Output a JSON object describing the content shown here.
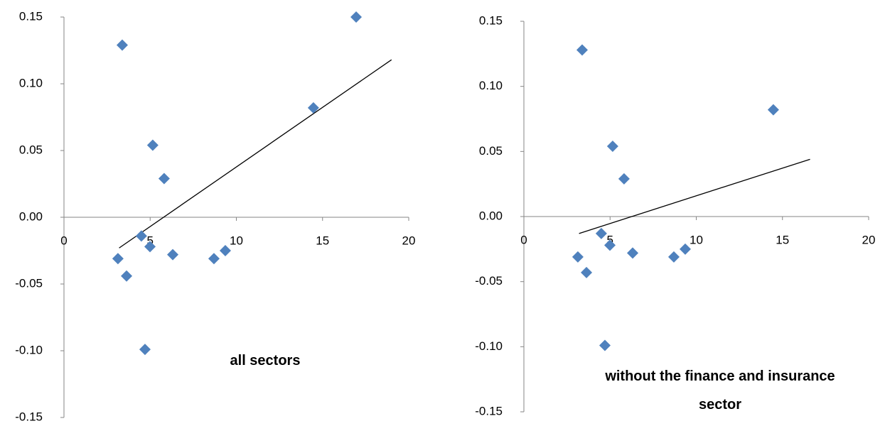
{
  "chart_data": [
    {
      "type": "scatter",
      "title": "all sectors",
      "x": [
        3.38,
        16.95,
        14.47,
        5.15,
        5.81,
        4.49,
        4.99,
        6.31,
        3.13,
        3.63,
        4.7,
        8.7,
        9.36
      ],
      "values": [
        0.129,
        0.15,
        0.082,
        0.054,
        0.029,
        -0.014,
        -0.022,
        -0.028,
        -0.031,
        -0.044,
        -0.099,
        -0.031,
        -0.025
      ],
      "color": "#4f81bd",
      "trendline": {
        "x": [
          3.2,
          19
        ],
        "values": [
          -0.023,
          0.118
        ],
        "color": "#000000"
      },
      "xlim": [
        0,
        20
      ],
      "xticks": [
        0,
        5,
        10,
        15,
        20
      ],
      "ylim": [
        -0.15,
        0.15
      ],
      "yticks": [
        {
          "value": -0.15,
          "label": "-0.15"
        },
        {
          "value": -0.1,
          "label": "-0.10"
        },
        {
          "value": -0.05,
          "label": "-0.05"
        },
        {
          "value": 0,
          "label": "0.00"
        },
        {
          "value": 0.05,
          "label": "0.05"
        },
        {
          "value": 0.1,
          "label": "0.10"
        },
        {
          "value": 0.15,
          "label": "0.15"
        }
      ]
    },
    {
      "type": "scatter",
      "title": "without the finance and insurance sector",
      "x": [
        3.38,
        14.47,
        5.15,
        5.81,
        4.49,
        4.99,
        6.31,
        3.13,
        3.63,
        4.7,
        8.7,
        9.36
      ],
      "values": [
        0.128,
        0.082,
        0.054,
        0.029,
        -0.013,
        -0.022,
        -0.028,
        -0.031,
        -0.043,
        -0.099,
        -0.031,
        -0.025
      ],
      "color": "#4f81bd",
      "trendline": {
        "x": [
          3.2,
          16.6
        ],
        "values": [
          -0.013,
          0.044
        ],
        "color": "#000000"
      },
      "xlim": [
        0,
        20
      ],
      "xticks": [
        0,
        5,
        10,
        15,
        20
      ],
      "ylim": [
        -0.15,
        0.15
      ],
      "yticks": [
        {
          "value": -0.15,
          "label": "-0.15"
        },
        {
          "value": -0.1,
          "label": "-0.10"
        },
        {
          "value": -0.05,
          "label": "-0.05"
        },
        {
          "value": 0,
          "label": "0.00"
        },
        {
          "value": 0.05,
          "label": "0.05"
        },
        {
          "value": 0.1,
          "label": "0.10"
        },
        {
          "value": 0.15,
          "label": "0.15"
        }
      ]
    }
  ]
}
